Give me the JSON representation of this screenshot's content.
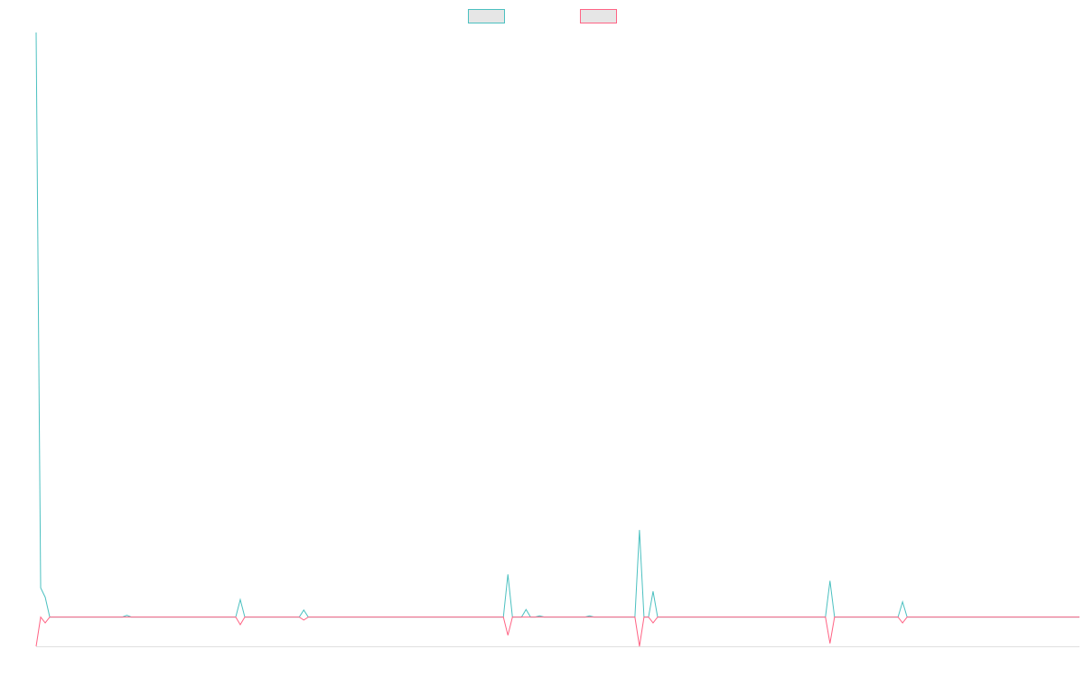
{
  "chart_data": {
    "type": "line",
    "legend": "top",
    "xlim": [
      0,
      230
    ],
    "ylim": [
      -5,
      100
    ],
    "x": [
      0,
      1,
      2,
      3,
      19,
      20,
      21,
      44,
      45,
      46,
      58,
      59,
      60,
      103,
      104,
      105,
      107,
      108,
      109,
      110,
      111,
      112,
      121,
      122,
      123,
      132,
      133,
      134,
      135,
      136,
      137,
      174,
      175,
      176,
      190,
      191,
      192,
      230
    ],
    "series": [
      {
        "color": "#4bc0c0",
        "values": [
          100,
          5,
          3.4,
          0,
          0,
          0.3,
          0,
          0,
          3,
          0,
          0,
          1.2,
          0,
          0,
          7.3,
          0,
          0,
          1.3,
          0,
          0,
          0.2,
          0,
          0,
          0.2,
          0,
          0,
          14.9,
          0,
          0,
          4.4,
          0,
          0,
          6.2,
          0,
          0,
          2.6,
          0,
          0
        ]
      },
      {
        "color": "#ff6384",
        "values": [
          -5,
          0,
          -1,
          0,
          0,
          0,
          0,
          0,
          -1.3,
          0,
          0,
          -0.5,
          0,
          0,
          -3.1,
          0,
          0,
          0,
          0,
          0,
          0,
          0,
          0,
          0,
          0,
          0,
          -5,
          0,
          0,
          -1,
          0,
          0,
          -4.5,
          0,
          0,
          -1,
          0,
          0
        ]
      }
    ]
  }
}
